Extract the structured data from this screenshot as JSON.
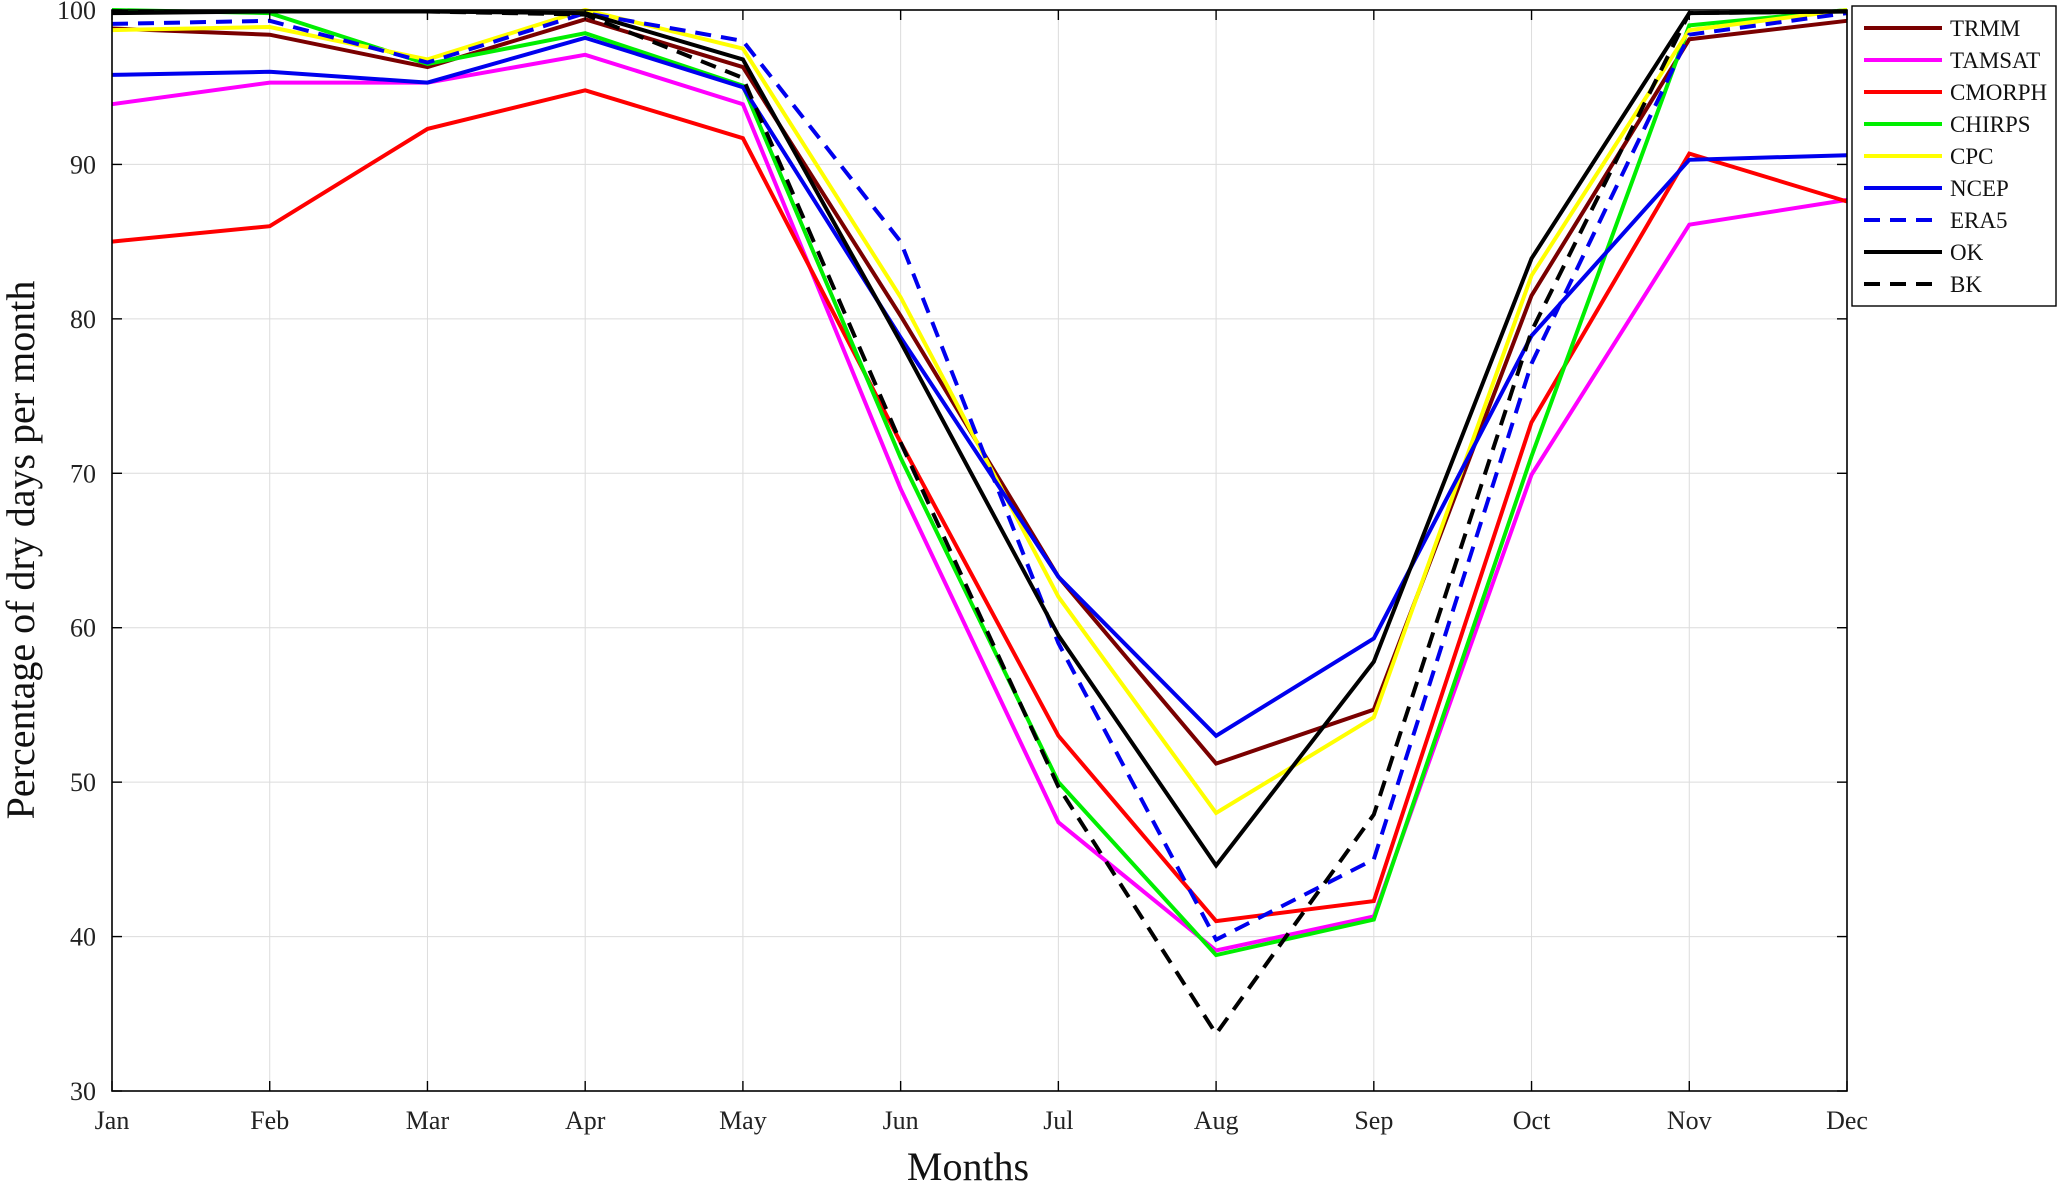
{
  "chart_data": {
    "type": "line",
    "title": "",
    "xlabel": "Months",
    "ylabel": "Percentage of dry days per month",
    "categories": [
      "Jan",
      "Feb",
      "Mar",
      "Apr",
      "May",
      "Jun",
      "Jul",
      "Aug",
      "Sep",
      "Oct",
      "Nov",
      "Dec"
    ],
    "ylim": [
      30,
      100
    ],
    "yticks": [
      30,
      40,
      50,
      60,
      70,
      80,
      90,
      100
    ],
    "grid": true,
    "legend_position": "top-right (outside plot area)",
    "series": [
      {
        "name": "TRMM",
        "color": "#7a0000",
        "dash": "solid",
        "values": [
          98.8,
          98.4,
          96.3,
          99.4,
          96.3,
          80.2,
          63.3,
          51.2,
          54.7,
          81.5,
          98.1,
          99.3
        ]
      },
      {
        "name": "TAMSAT",
        "color": "#ff00ff",
        "dash": "solid",
        "values": [
          93.9,
          95.3,
          95.3,
          97.1,
          93.9,
          69.0,
          47.4,
          39.1,
          41.3,
          69.9,
          86.1,
          87.7
        ]
      },
      {
        "name": "CMORPH",
        "color": "#ff0000",
        "dash": "solid",
        "values": [
          85.0,
          86.0,
          92.3,
          94.8,
          91.7,
          72.0,
          53.0,
          41.0,
          42.3,
          73.3,
          90.7,
          87.6
        ]
      },
      {
        "name": "CHIRPS",
        "color": "#00ee00",
        "dash": "solid",
        "values": [
          100.0,
          99.8,
          96.5,
          98.5,
          95.1,
          71.0,
          50.0,
          38.8,
          41.1,
          71.1,
          99.0,
          100.0
        ]
      },
      {
        "name": "CPC",
        "color": "#ffff00",
        "dash": "solid",
        "values": [
          98.7,
          98.9,
          96.8,
          100.0,
          97.5,
          81.4,
          62.0,
          48.0,
          54.2,
          82.8,
          98.7,
          100.0
        ]
      },
      {
        "name": "NCEP",
        "color": "#0000ee",
        "dash": "solid",
        "values": [
          95.8,
          96.0,
          95.3,
          98.2,
          95.0,
          78.8,
          63.3,
          53.0,
          59.3,
          78.9,
          90.3,
          90.6
        ]
      },
      {
        "name": "ERA5",
        "color": "#0000ee",
        "dash": "dashed",
        "values": [
          99.1,
          99.3,
          96.6,
          99.8,
          98.0,
          85.0,
          59.0,
          39.8,
          45.0,
          77.1,
          98.4,
          99.8
        ]
      },
      {
        "name": "OK",
        "color": "#000000",
        "dash": "solid",
        "values": [
          99.8,
          99.9,
          99.9,
          99.8,
          96.8,
          78.5,
          59.5,
          44.6,
          57.8,
          83.9,
          99.8,
          99.9
        ]
      },
      {
        "name": "BK",
        "color": "#000000",
        "dash": "dashed",
        "values": [
          99.9,
          99.9,
          99.9,
          99.7,
          95.6,
          72.0,
          49.7,
          33.7,
          47.9,
          79.2,
          99.8,
          99.9
        ]
      }
    ]
  }
}
